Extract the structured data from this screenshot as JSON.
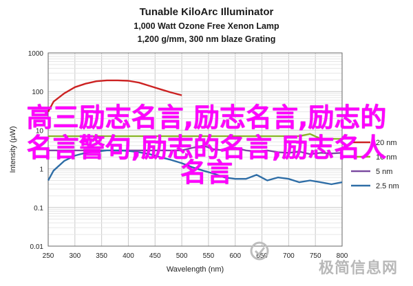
{
  "titles": {
    "main": "Tunable KiloArc Illuminator",
    "line2": "1,000 Watt Ozone Free Xenon Lamp",
    "line3": "1,200 g/mm, 300 nm blaze Grating"
  },
  "overlay": {
    "line1": "高三励志名言,励志名言,励志的",
    "line2": "名言警句,励志的名言,励志名人",
    "line3": "名言"
  },
  "watermark": "极简信息网",
  "colors": {
    "s20": "#cc2222",
    "s10": "#88b428",
    "s5": "#7a4aa0",
    "s25": "#2e6da6",
    "grid": "#c8c8c8",
    "overlay": "#ff00ff"
  },
  "chart_data": {
    "type": "line",
    "title": "Tunable KiloArc Illuminator",
    "xlabel": "Wavelength (nm)",
    "ylabel": "Intensity (µW)",
    "xlim": [
      250,
      800
    ],
    "ylim": [
      0.01,
      1000
    ],
    "yscale": "log",
    "grid": true,
    "legend_position": "right",
    "x_ticks": [
      "250",
      "300",
      "350",
      "400",
      "450",
      "500",
      "550",
      "600",
      "650",
      "700",
      "750",
      "800"
    ],
    "y_ticks": [
      "0.01",
      "0.1",
      "1",
      "10",
      "100",
      "1000"
    ],
    "series": [
      {
        "name": "20 nm",
        "color": "#cc2222",
        "x": [
          250,
          260,
          280,
          300,
          320,
          340,
          360,
          380,
          400,
          420,
          440,
          460,
          480,
          500
        ],
        "y": [
          30,
          55,
          90,
          130,
          160,
          185,
          195,
          195,
          190,
          170,
          140,
          115,
          95,
          80
        ]
      },
      {
        "name": "10 nm",
        "color": "#88b428",
        "x": [
          250,
          700,
          720,
          740,
          760,
          780,
          800
        ],
        "y": [
          7,
          7,
          7,
          8,
          6,
          6,
          6
        ]
      },
      {
        "name": "5 nm",
        "color": "#7a4aa0",
        "x": [
          250,
          500,
          520,
          540,
          560,
          580,
          600,
          620,
          640,
          660,
          680,
          700,
          720,
          740,
          760,
          780,
          800
        ],
        "y": [
          3,
          3,
          3.5,
          4,
          3.2,
          3,
          3.5,
          3,
          2.8,
          3,
          2.7,
          2.6,
          2.8,
          2.4,
          2.6,
          2.5,
          2.6
        ]
      },
      {
        "name": "2.5 nm",
        "color": "#2e6da6",
        "x": [
          250,
          260,
          280,
          300,
          320,
          340,
          360,
          380,
          400,
          420,
          440,
          460,
          480,
          500,
          520,
          540,
          560,
          580,
          600,
          620,
          640,
          660,
          680,
          700,
          720,
          740,
          760,
          780,
          800
        ],
        "y": [
          0.5,
          0.9,
          1.6,
          2.2,
          2.6,
          2.8,
          3.0,
          3.0,
          2.9,
          2.7,
          2.4,
          2.0,
          1.7,
          1.4,
          1.1,
          0.9,
          0.75,
          0.6,
          0.55,
          0.55,
          0.7,
          0.5,
          0.6,
          0.55,
          0.45,
          0.5,
          0.45,
          0.4,
          0.45
        ]
      }
    ]
  }
}
